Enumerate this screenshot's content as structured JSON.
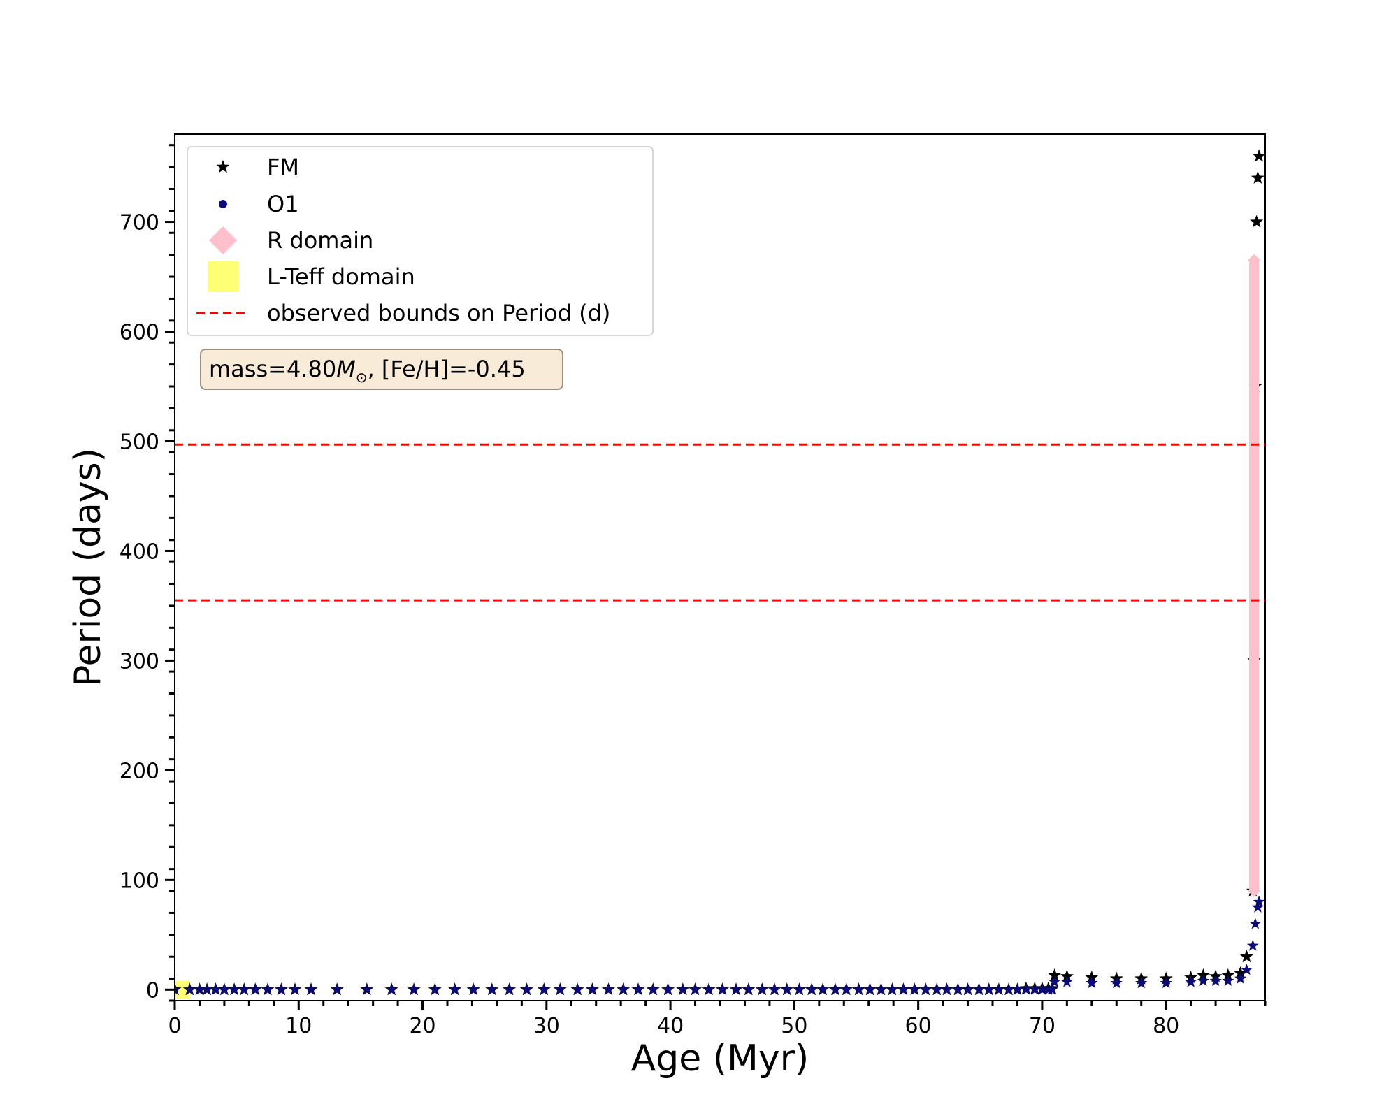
{
  "chart_data": {
    "type": "scatter",
    "xlabel": "Age (Myr)",
    "ylabel": "Period (days)",
    "xlim": [
      0,
      88
    ],
    "ylim": [
      -10,
      780
    ],
    "x_ticks": [
      0,
      10,
      20,
      30,
      40,
      50,
      60,
      70,
      80
    ],
    "y_ticks": [
      0,
      100,
      200,
      300,
      400,
      500,
      600,
      700
    ],
    "grid": false,
    "legend_position": "upper-left",
    "annotation": {
      "prefix": "mass=4.80",
      "symbol": "M",
      "subscript": "⊙",
      "suffix": ", [Fe/H]=-0.45"
    },
    "series": [
      {
        "name": "FM",
        "marker": "star",
        "color": "#000000",
        "x": [
          0.0,
          1.2,
          2.0,
          2.6,
          3.3,
          4.0,
          4.8,
          5.6,
          6.5,
          7.5,
          8.6,
          9.7,
          11.0,
          13.1,
          15.5,
          17.5,
          19.3,
          21.0,
          22.6,
          24.1,
          25.6,
          27.0,
          28.4,
          29.8,
          31.1,
          32.5,
          33.7,
          35.0,
          36.2,
          37.4,
          38.6,
          39.8,
          41.0,
          42.0,
          43.1,
          44.2,
          45.3,
          46.3,
          47.4,
          48.4,
          49.4,
          50.4,
          51.4,
          52.3,
          53.3,
          54.2,
          55.2,
          56.1,
          57.0,
          57.9,
          58.8,
          59.7,
          60.6,
          61.5,
          62.3,
          63.2,
          64.0,
          64.9,
          65.7,
          66.5,
          67.3,
          68.0,
          68.7,
          69.4,
          70.0,
          70.5,
          70.8,
          71.0,
          72.0,
          74.0,
          76.0,
          78.0,
          80.0,
          82.0,
          83.0,
          84.0,
          85.0,
          86.0,
          86.5,
          87.0,
          87.1,
          87.2,
          87.3,
          87.4,
          87.5
        ],
        "y": [
          0,
          0,
          0,
          0,
          0,
          0,
          0,
          0,
          0,
          0,
          0,
          0,
          0,
          0,
          0,
          0,
          0,
          0,
          0,
          0,
          0,
          0,
          0,
          0,
          0,
          0,
          0,
          0,
          0,
          0,
          0,
          0,
          0,
          0,
          0,
          0,
          0,
          0,
          0,
          0,
          0,
          0,
          0,
          0,
          0,
          0,
          0,
          0,
          0,
          0,
          0,
          0,
          0,
          0,
          0,
          0,
          0,
          0,
          0,
          0,
          0,
          0,
          1,
          1,
          1,
          1,
          1,
          13,
          12,
          11,
          10,
          10,
          10,
          11,
          13,
          12,
          13,
          15,
          30,
          90,
          300,
          550,
          700,
          740,
          760
        ]
      },
      {
        "name": "O1",
        "marker": "circle",
        "color": "#0a0a78",
        "x": [
          0.0,
          1.2,
          2.0,
          2.6,
          3.3,
          4.0,
          4.8,
          5.6,
          6.5,
          7.5,
          8.6,
          9.7,
          11.0,
          13.1,
          15.5,
          17.5,
          19.3,
          21.0,
          22.6,
          24.1,
          25.6,
          27.0,
          28.4,
          29.8,
          31.1,
          32.5,
          33.7,
          35.0,
          36.2,
          37.4,
          38.6,
          39.8,
          41.0,
          42.0,
          43.1,
          44.2,
          45.3,
          46.3,
          47.4,
          48.4,
          49.4,
          50.4,
          51.4,
          52.3,
          53.3,
          54.2,
          55.2,
          56.1,
          57.0,
          57.9,
          58.8,
          59.7,
          60.6,
          61.5,
          62.3,
          63.2,
          64.0,
          64.9,
          65.7,
          66.5,
          67.3,
          68.0,
          68.7,
          69.4,
          70.0,
          70.5,
          70.8,
          71.0,
          72.0,
          74.0,
          76.0,
          78.0,
          80.0,
          82.0,
          83.0,
          84.0,
          85.0,
          86.0,
          86.5,
          87.0,
          87.2,
          87.4,
          87.5
        ],
        "y": [
          0,
          0,
          0,
          0,
          0,
          0,
          0,
          0,
          0,
          0,
          0,
          0,
          0,
          0,
          0,
          0,
          0,
          0,
          0,
          0,
          0,
          0,
          0,
          0,
          0,
          0,
          0,
          0,
          0,
          0,
          0,
          0,
          0,
          0,
          0,
          0,
          0,
          0,
          0,
          0,
          0,
          0,
          0,
          0,
          0,
          0,
          0,
          0,
          0,
          0,
          0,
          0,
          0,
          0,
          0,
          0,
          0,
          0,
          0,
          0,
          0,
          0,
          0,
          0,
          0,
          0,
          0,
          7,
          7,
          6,
          6,
          6,
          6,
          7,
          8,
          8,
          8,
          10,
          18,
          40,
          60,
          75,
          80
        ]
      },
      {
        "name": "R domain",
        "marker": "diamond",
        "color": "#ffc0cb",
        "x_range": [
          86.7,
          87.5
        ],
        "y_range": [
          90,
          665
        ]
      },
      {
        "name": "L-Teff domain",
        "marker": "square",
        "color": "#ffff66",
        "x_range": [
          0.0,
          1.2
        ],
        "y_range": [
          -8,
          8
        ]
      },
      {
        "name": "observed bounds on Period (d)",
        "type": "hline",
        "color": "#ff0000",
        "linestyle": "dashed",
        "values": [
          355,
          497
        ]
      }
    ]
  }
}
